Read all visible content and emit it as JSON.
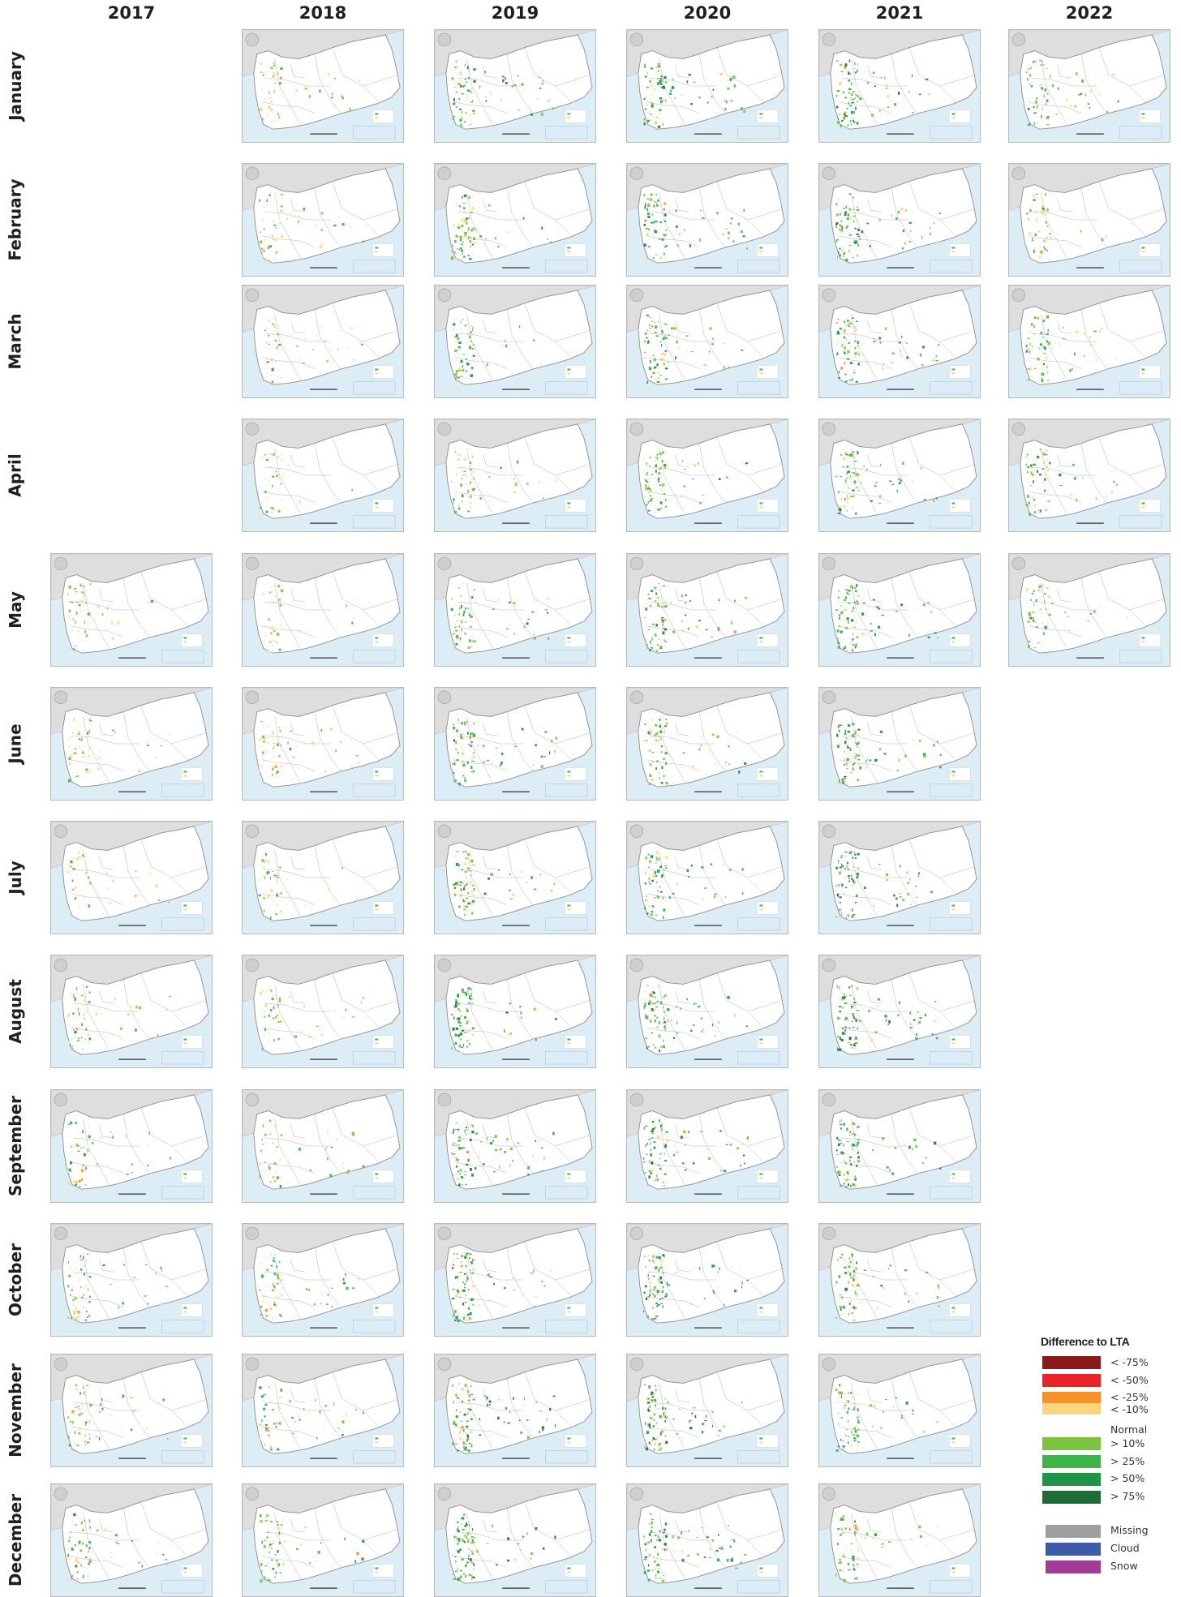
{
  "years": [
    "2017",
    "2018",
    "2019",
    "2020",
    "2021",
    "2022"
  ],
  "months": [
    "January",
    "February",
    "March",
    "April",
    "May",
    "June",
    "July",
    "August",
    "September",
    "October",
    "November",
    "December"
  ],
  "map_grid": {
    "available_from": {
      "year": "2017",
      "month": "May"
    },
    "available_to": {
      "year": "2022",
      "month": "May"
    },
    "tile_style": {
      "sea_color": "#dcedf6",
      "land_color": "#ffffff",
      "neighbor_land_color": "#dedede",
      "border_color": "#8c8c8c"
    },
    "tile_greenness": {
      "2017": [
        null,
        null,
        null,
        null,
        0.35,
        0.35,
        0.3,
        0.45,
        0.5,
        0.55,
        0.55,
        0.6
      ],
      "2018": [
        0.35,
        0.35,
        0.35,
        0.3,
        0.3,
        0.35,
        0.35,
        0.35,
        0.5,
        0.55,
        0.55,
        0.6
      ],
      "2019": [
        0.75,
        0.7,
        0.6,
        0.45,
        0.55,
        0.75,
        0.75,
        0.8,
        0.85,
        0.85,
        0.9,
        0.9
      ],
      "2020": [
        0.8,
        0.8,
        0.75,
        0.7,
        0.7,
        0.65,
        0.75,
        0.85,
        0.85,
        0.85,
        0.85,
        0.85
      ],
      "2021": [
        0.85,
        0.85,
        0.8,
        0.75,
        0.8,
        0.8,
        0.9,
        0.9,
        0.85,
        0.75,
        0.65,
        0.55
      ],
      "2022": [
        0.6,
        0.45,
        0.65,
        0.65,
        0.5,
        null,
        null,
        null,
        null,
        null,
        null,
        null
      ]
    }
  },
  "legend": {
    "title": "Difference to LTA",
    "items": [
      {
        "label": "< -75%",
        "color": "#8b1a1a"
      },
      {
        "label": "< -50%",
        "color": "#e8242a"
      },
      {
        "label": "< -25%",
        "color": "#f7922a"
      },
      {
        "label": "< -10%",
        "color": "#fdd57e"
      },
      {
        "label": "Normal",
        "color": "#ffffff"
      },
      {
        "label": "> 10%",
        "color": "#7dc242"
      },
      {
        "label": "> 25%",
        "color": "#3fb24a"
      },
      {
        "label": "> 50%",
        "color": "#1d9446"
      },
      {
        "label": "> 75%",
        "color": "#226b35"
      },
      {
        "label": "Missing",
        "color": "#9e9e9e"
      },
      {
        "label": "Cloud",
        "color": "#3d5ba9"
      },
      {
        "label": "Snow",
        "color": "#a23c97"
      }
    ]
  }
}
